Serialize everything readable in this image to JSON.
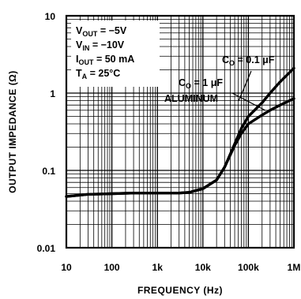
{
  "chart_data": {
    "type": "line",
    "title": "",
    "xlabel": "FREQUENCY (Hz)",
    "ylabel": "OUTPUT IMPEDANCE (Ω)",
    "x_scale": "log",
    "y_scale": "log",
    "xlim": [
      10,
      1000000
    ],
    "ylim": [
      0.01,
      10
    ],
    "grid": true,
    "x_ticks": [
      {
        "value": 10,
        "label": "10"
      },
      {
        "value": 100,
        "label": "100"
      },
      {
        "value": 1000,
        "label": "1k"
      },
      {
        "value": 10000,
        "label": "10k"
      },
      {
        "value": 100000,
        "label": "100k"
      },
      {
        "value": 1000000,
        "label": "1M"
      }
    ],
    "y_ticks": [
      {
        "value": 0.01,
        "label": "0.01"
      },
      {
        "value": 0.1,
        "label": "0.1"
      },
      {
        "value": 1,
        "label": "1"
      },
      {
        "value": 10,
        "label": "10"
      }
    ],
    "conditions": [
      {
        "main": "V",
        "sub": "OUT",
        "rest": " = −5V"
      },
      {
        "main": "V",
        "sub": "IN",
        "rest": " = −10V"
      },
      {
        "main": "I",
        "sub": "OUT",
        "rest": " = 50 mA"
      },
      {
        "main": "T",
        "sub": "A",
        "rest": " = 25°C"
      }
    ],
    "series": [
      {
        "name_main": "C",
        "name_sub": "O",
        "name_rest": " = 0.1 μF",
        "x": [
          10,
          30,
          100,
          300,
          1000,
          3000,
          5000,
          10000,
          20000,
          30000,
          50000,
          70000,
          100000,
          200000,
          300000,
          500000,
          1000000
        ],
        "y": [
          0.046,
          0.049,
          0.05,
          0.051,
          0.051,
          0.051,
          0.052,
          0.058,
          0.075,
          0.11,
          0.22,
          0.35,
          0.5,
          0.75,
          1.0,
          1.4,
          2.1
        ]
      },
      {
        "name_main": "C",
        "name_sub": "O",
        "name_rest": " = 1 μF",
        "name_line2": "ALUMINUM",
        "x": [
          10,
          30,
          100,
          300,
          1000,
          3000,
          5000,
          10000,
          20000,
          30000,
          50000,
          70000,
          100000,
          200000,
          300000,
          500000,
          1000000
        ],
        "y": [
          0.046,
          0.049,
          0.05,
          0.051,
          0.051,
          0.051,
          0.052,
          0.058,
          0.075,
          0.11,
          0.21,
          0.3,
          0.4,
          0.52,
          0.6,
          0.7,
          0.85
        ]
      }
    ]
  }
}
